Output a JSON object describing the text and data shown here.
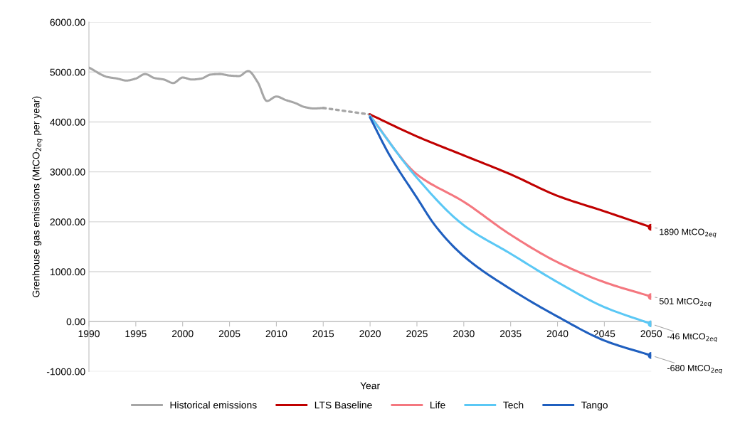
{
  "chart_data": {
    "type": "line",
    "xlabel": "Year",
    "ylabel": "Grenhouse gas emissions (MtCO$_{2eq}$ per year)",
    "xlim": [
      1990,
      2050
    ],
    "ylim": [
      -1000,
      6000
    ],
    "xticks": [
      1990,
      1995,
      2000,
      2005,
      2010,
      2015,
      2020,
      2025,
      2030,
      2035,
      2040,
      2045,
      2050
    ],
    "yticks": [
      {
        "value": -1000,
        "label": "-1000.00"
      },
      {
        "value": 0,
        "label": "0.00"
      },
      {
        "value": 1000,
        "label": "1000.00"
      },
      {
        "value": 2000,
        "label": "2000.00"
      },
      {
        "value": 3000,
        "label": "3000.00"
      },
      {
        "value": 4000,
        "label": "4000.00"
      },
      {
        "value": 5000,
        "label": "5000.00"
      },
      {
        "value": 6000,
        "label": "6000.00"
      }
    ],
    "grid": "y",
    "legend": "bottom",
    "line_style": "solid",
    "series": [
      {
        "name": "Historical emissions",
        "color": "#a6a6a6",
        "x": [
          1990,
          1992,
          1993,
          1994,
          1995,
          1996,
          1997,
          1998,
          1999,
          2000,
          2001,
          2002,
          2003,
          2004,
          2005,
          2006,
          2007,
          2008,
          2009,
          2010,
          2011,
          2012,
          2013,
          2014,
          2015
        ],
        "values": [
          5090,
          4900,
          4870,
          4830,
          4870,
          4960,
          4880,
          4850,
          4780,
          4890,
          4850,
          4870,
          4950,
          4960,
          4930,
          4920,
          5020,
          4800,
          4420,
          4510,
          4440,
          4380,
          4300,
          4270,
          4280
        ]
      },
      {
        "color": "#a6a6a6",
        "line_style": "dotted",
        "x": [
          2015,
          2020
        ],
        "values": [
          4280,
          4150
        ]
      },
      {
        "name": "LTS Baseline",
        "color": "#c00000",
        "x": [
          2020,
          2025,
          2030,
          2035,
          2040,
          2045,
          2050
        ],
        "values": [
          4150,
          3710,
          3330,
          2950,
          2520,
          2210,
          1890
        ],
        "value_labels": [
          null,
          null,
          null,
          null,
          null,
          null,
          "1890 MtCO$_{2eq}$"
        ]
      },
      {
        "name": "Life",
        "color": "#f4777f",
        "x": [
          2020,
          2025,
          2030,
          2035,
          2040,
          2045,
          2050
        ],
        "values": [
          4120,
          2950,
          2400,
          1740,
          1190,
          790,
          501
        ],
        "value_labels": [
          null,
          null,
          null,
          null,
          null,
          null,
          "501 MtCO$_{2eq}$"
        ]
      },
      {
        "name": "Tech",
        "color": "#5bc8f5",
        "x": [
          2020,
          2025,
          2030,
          2035,
          2040,
          2045,
          2050
        ],
        "values": [
          4120,
          2880,
          1930,
          1360,
          790,
          290,
          -46
        ],
        "value_labels": [
          null,
          null,
          null,
          null,
          null,
          null,
          "-46 MtCO$_{2eq}$"
        ]
      },
      {
        "name": "Tango",
        "color": "#1f5fbf",
        "x": [
          2020,
          2022,
          2025,
          2027,
          2030,
          2035,
          2040,
          2045,
          2050
        ],
        "values": [
          4090,
          3360,
          2480,
          1910,
          1310,
          650,
          100,
          -380,
          -680
        ],
        "value_labels": [
          null,
          null,
          null,
          null,
          null,
          null,
          null,
          null,
          "-680 MtCO$_{2eq}$"
        ]
      }
    ]
  }
}
